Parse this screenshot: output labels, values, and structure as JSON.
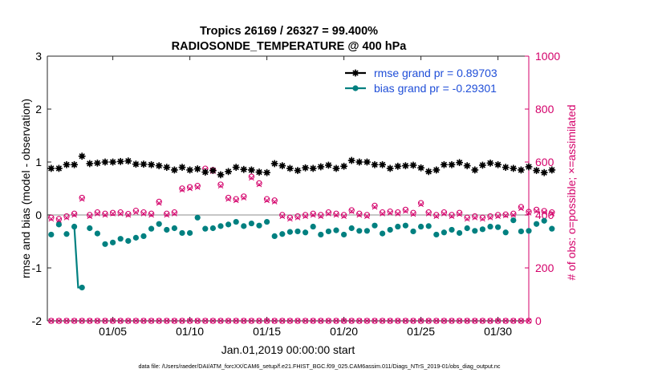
{
  "chart_data": {
    "type": "line",
    "title": "Tropics 26169 / 26327 = 99.400%",
    "subtitle": "RADIOSONDE_TEMPERATURE @ 400 hPa",
    "xlabel": "Jan.01,2019 00:00:00 start",
    "ylabel_left": "rmse and bias (model - observation)",
    "ylabel_right": "# of obs: o=possible; ×=assimilated",
    "footer": "data file: /Users/raeder/DAI/ATM_forcXX/CAM6_setup/f.e21.FHIST_BGC.f09_025.CAM6assim.011/Diags_NTrS_2019-01/obs_diag_output.nc",
    "xlim": [
      0.75,
      32.0
    ],
    "ylim_left": [
      -2,
      3
    ],
    "ylim_right": [
      0,
      1000
    ],
    "grid": false,
    "legend_position": "top-right",
    "x_ticks": [
      {
        "value": 5,
        "label": "01/05"
      },
      {
        "value": 10,
        "label": "01/10"
      },
      {
        "value": 15,
        "label": "01/15"
      },
      {
        "value": 20,
        "label": "01/20"
      },
      {
        "value": 25,
        "label": "01/25"
      },
      {
        "value": 30,
        "label": "01/30"
      }
    ],
    "y_left_ticks": [
      -2,
      -1,
      0,
      1,
      2,
      3
    ],
    "y_right_ticks": [
      0,
      200,
      400,
      600,
      800,
      1000
    ],
    "colors": {
      "rmse": "#000000",
      "bias": "#008080",
      "obs": "#d4006a",
      "zero_line": "#b4b4b4"
    },
    "series": [
      {
        "name": "rmse grand pr = 0.89703",
        "key": "rmse",
        "marker": "star",
        "values": [
          0.88,
          0.88,
          0.95,
          0.95,
          1.11,
          0.97,
          0.98,
          1.0,
          1.0,
          1.01,
          1.02,
          0.96,
          0.96,
          0.95,
          0.93,
          0.9,
          0.85,
          0.9,
          0.85,
          0.87,
          0.81,
          0.84,
          0.76,
          0.82,
          0.9,
          0.86,
          0.85,
          0.81,
          0.8,
          0.97,
          0.93,
          0.88,
          0.84,
          0.89,
          0.88,
          0.91,
          0.94,
          0.88,
          0.92,
          1.03,
          1.0,
          1.0,
          0.95,
          0.95,
          0.88,
          0.92,
          0.93,
          0.94,
          0.89,
          0.82,
          0.85,
          0.95,
          0.95,
          0.99,
          0.93,
          0.85,
          0.94,
          0.98,
          0.95,
          0.9,
          0.88,
          0.85,
          0.91,
          0.84,
          0.8,
          0.85
        ]
      },
      {
        "name": "bias grand pr = -0.29301",
        "key": "bias",
        "marker": "circle",
        "values": [
          -0.37,
          -0.18,
          -0.36,
          -0.22,
          -1.37,
          -0.25,
          -0.35,
          -0.55,
          -0.52,
          -0.45,
          -0.49,
          -0.43,
          -0.4,
          -0.26,
          -0.17,
          -0.28,
          -0.25,
          -0.34,
          -0.34,
          -0.05,
          -0.26,
          -0.25,
          -0.21,
          -0.18,
          -0.13,
          -0.21,
          -0.16,
          -0.2,
          -0.13,
          -0.4,
          -0.36,
          -0.32,
          -0.31,
          -0.33,
          -0.22,
          -0.37,
          -0.31,
          -0.29,
          -0.37,
          -0.25,
          -0.3,
          -0.3,
          -0.2,
          -0.35,
          -0.28,
          -0.22,
          -0.2,
          -0.31,
          -0.22,
          -0.21,
          -0.37,
          -0.33,
          -0.28,
          -0.34,
          -0.25,
          -0.3,
          -0.27,
          -0.22,
          -0.23,
          -0.33,
          -0.1,
          -0.31,
          -0.3,
          -0.17,
          -0.11,
          -0.26
        ]
      }
    ],
    "bias_outlier_line_x": [
      2.5,
      2.75,
      3.0
    ],
    "obs_possible": [
      390,
      385,
      395,
      405,
      465,
      400,
      410,
      405,
      408,
      410,
      404,
      416,
      410,
      405,
      450,
      405,
      410,
      500,
      505,
      510,
      575,
      570,
      515,
      465,
      460,
      470,
      545,
      520,
      460,
      455,
      400,
      390,
      395,
      400,
      405,
      400,
      410,
      405,
      400,
      418,
      405,
      400,
      435,
      410,
      413,
      410,
      420,
      408,
      445,
      410,
      400,
      410,
      400,
      408,
      390,
      395,
      390,
      395,
      400,
      402,
      405,
      430,
      412,
      420,
      415,
      410
    ],
    "obs_assimilated": [
      385,
      380,
      390,
      400,
      460,
      395,
      405,
      400,
      405,
      405,
      400,
      410,
      405,
      400,
      445,
      400,
      405,
      495,
      500,
      505,
      570,
      565,
      510,
      460,
      455,
      465,
      540,
      515,
      455,
      450,
      395,
      385,
      390,
      395,
      400,
      395,
      405,
      400,
      395,
      414,
      400,
      395,
      430,
      405,
      408,
      405,
      415,
      403,
      440,
      405,
      395,
      405,
      395,
      403,
      385,
      390,
      385,
      390,
      395,
      398,
      400,
      425,
      408,
      415,
      410,
      405
    ],
    "obs_zero_row": 0
  }
}
